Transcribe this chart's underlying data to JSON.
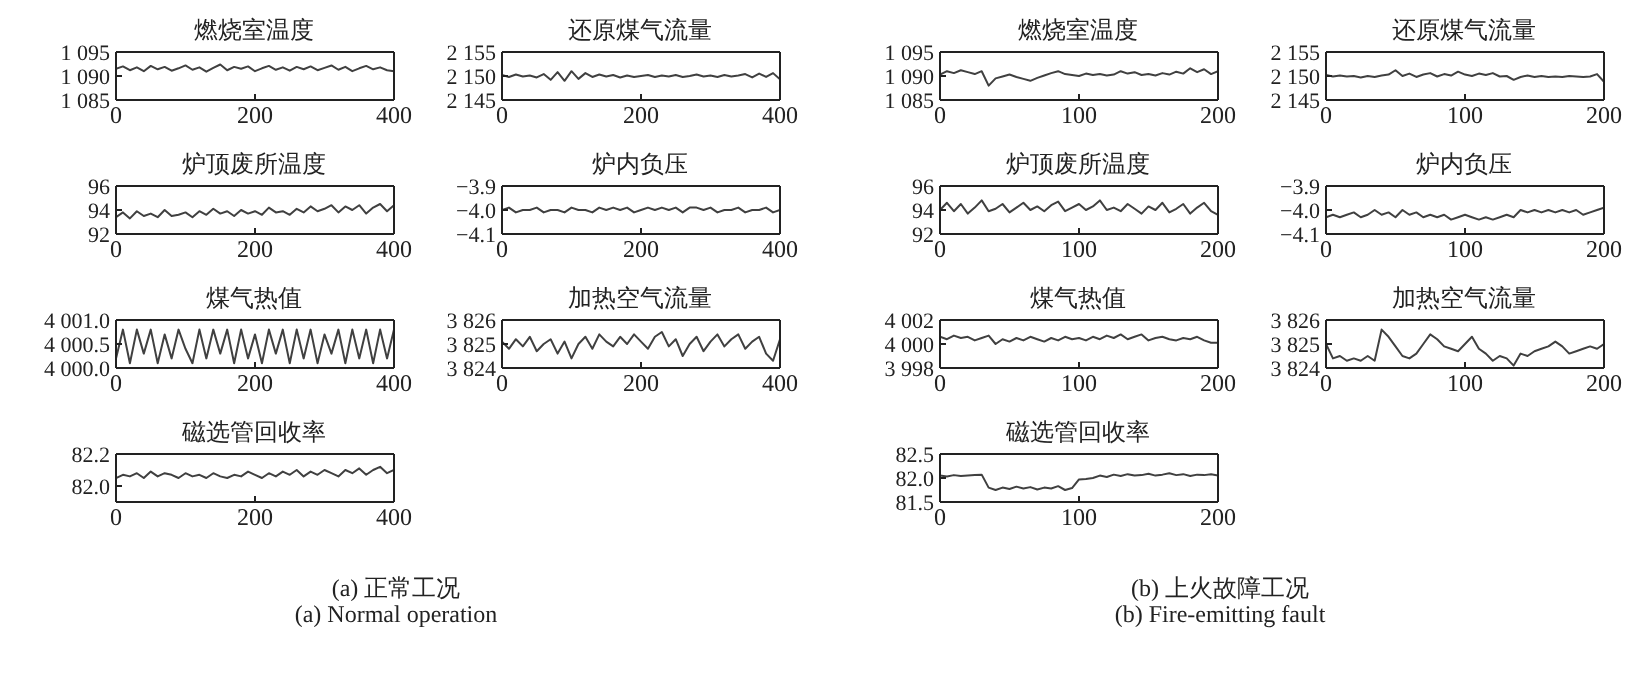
{
  "chart_data": [
    {
      "type": "line",
      "title": "燃烧室温度",
      "color": "#404040",
      "x": [
        0,
        10,
        20,
        30,
        40,
        50,
        60,
        70,
        80,
        90,
        100,
        110,
        120,
        130,
        140,
        150,
        160,
        170,
        180,
        190,
        200,
        210,
        220,
        230,
        240,
        250,
        260,
        270,
        280,
        290,
        300,
        310,
        320,
        330,
        340,
        350,
        360,
        370,
        380,
        390,
        400
      ],
      "values": [
        1091.5,
        1092.0,
        1091.2,
        1091.8,
        1091.0,
        1092.1,
        1091.4,
        1091.9,
        1091.1,
        1091.6,
        1092.2,
        1091.3,
        1091.8,
        1090.9,
        1091.7,
        1092.4,
        1091.2,
        1091.9,
        1091.5,
        1092.0,
        1091.0,
        1091.6,
        1092.1,
        1091.3,
        1091.8,
        1091.1,
        1091.9,
        1091.4,
        1092.0,
        1091.2,
        1091.7,
        1092.2,
        1091.3,
        1091.9,
        1091.0,
        1091.6,
        1092.1,
        1091.4,
        1091.8,
        1091.2,
        1091.0
      ],
      "xlim": [
        0,
        400
      ],
      "xticks": [
        0,
        200,
        400
      ],
      "ylim": [
        1085,
        1095
      ],
      "yticks": [
        {
          "value": 1085,
          "label": "1 085"
        },
        {
          "value": 1090,
          "label": "1 090"
        },
        {
          "value": 1095,
          "label": "1 095"
        }
      ]
    },
    {
      "type": "line",
      "title": "还原煤气流量",
      "color": "#404040",
      "x": [
        0,
        10,
        20,
        30,
        40,
        50,
        60,
        70,
        80,
        90,
        100,
        110,
        120,
        130,
        140,
        150,
        160,
        170,
        180,
        190,
        200,
        210,
        220,
        230,
        240,
        250,
        260,
        270,
        280,
        290,
        300,
        310,
        320,
        330,
        340,
        350,
        360,
        370,
        380,
        390,
        400
      ],
      "values": [
        2150.2,
        2149.8,
        2150.3,
        2149.9,
        2150.1,
        2149.7,
        2150.4,
        2149.2,
        2150.8,
        2149.0,
        2151.0,
        2149.4,
        2150.6,
        2149.8,
        2150.3,
        2149.9,
        2150.2,
        2149.7,
        2150.1,
        2149.8,
        2150.0,
        2150.2,
        2149.8,
        2150.1,
        2149.9,
        2150.2,
        2149.8,
        2150.0,
        2150.3,
        2149.9,
        2150.1,
        2149.8,
        2150.2,
        2149.9,
        2150.1,
        2150.4,
        2149.7,
        2150.5,
        2149.8,
        2150.6,
        2149.3
      ],
      "xlim": [
        0,
        400
      ],
      "xticks": [
        0,
        200,
        400
      ],
      "ylim": [
        2145,
        2155
      ],
      "yticks": [
        {
          "value": 2145,
          "label": "2 145"
        },
        {
          "value": 2150,
          "label": "2 150"
        },
        {
          "value": 2155,
          "label": "2 155"
        }
      ]
    },
    {
      "type": "line",
      "title": "炉顶废所温度",
      "color": "#404040",
      "x": [
        0,
        10,
        20,
        30,
        40,
        50,
        60,
        70,
        80,
        90,
        100,
        110,
        120,
        130,
        140,
        150,
        160,
        170,
        180,
        190,
        200,
        210,
        220,
        230,
        240,
        250,
        260,
        270,
        280,
        290,
        300,
        310,
        320,
        330,
        340,
        350,
        360,
        370,
        380,
        390,
        400
      ],
      "values": [
        93.4,
        93.8,
        93.3,
        93.9,
        93.5,
        93.7,
        93.4,
        94.0,
        93.5,
        93.6,
        93.8,
        93.4,
        93.9,
        93.6,
        94.1,
        93.7,
        93.9,
        93.5,
        94.0,
        93.7,
        93.9,
        93.6,
        94.2,
        93.8,
        93.9,
        93.6,
        94.1,
        93.8,
        94.3,
        93.9,
        94.1,
        94.4,
        93.8,
        94.3,
        94.0,
        94.4,
        93.7,
        94.2,
        94.5,
        93.9,
        94.4
      ],
      "xlim": [
        0,
        400
      ],
      "xticks": [
        0,
        200,
        400
      ],
      "ylim": [
        92,
        96
      ],
      "yticks": [
        92,
        94,
        96
      ]
    },
    {
      "type": "line",
      "title": "炉内负压",
      "color": "#404040",
      "x": [
        0,
        10,
        20,
        30,
        40,
        50,
        60,
        70,
        80,
        90,
        100,
        110,
        120,
        130,
        140,
        150,
        160,
        170,
        180,
        190,
        200,
        210,
        220,
        230,
        240,
        250,
        260,
        270,
        280,
        290,
        300,
        310,
        320,
        330,
        340,
        350,
        360,
        370,
        380,
        390,
        400
      ],
      "values": [
        -4.0,
        -3.99,
        -4.01,
        -4.0,
        -4.0,
        -3.99,
        -4.01,
        -4.0,
        -4.0,
        -4.01,
        -3.99,
        -4.0,
        -4.0,
        -4.01,
        -3.99,
        -4.0,
        -3.99,
        -4.0,
        -3.99,
        -4.01,
        -4.0,
        -3.99,
        -4.0,
        -3.99,
        -4.0,
        -3.99,
        -4.01,
        -3.99,
        -3.99,
        -4.0,
        -3.99,
        -4.01,
        -4.0,
        -4.0,
        -3.99,
        -4.01,
        -4.0,
        -4.0,
        -3.99,
        -4.01,
        -4.0
      ],
      "xlim": [
        0,
        400
      ],
      "xticks": [
        0,
        200,
        400
      ],
      "ylim": [
        -4.1,
        -3.9
      ],
      "yticks": [
        {
          "value": -4.1,
          "label": "−4.1"
        },
        {
          "value": -4.0,
          "label": "−4.0"
        },
        {
          "value": -3.9,
          "label": "−3.9"
        }
      ]
    },
    {
      "type": "line",
      "title": "煤气热值",
      "color": "#404040",
      "x": [
        0,
        10,
        20,
        30,
        40,
        50,
        60,
        70,
        80,
        90,
        100,
        110,
        120,
        130,
        140,
        150,
        160,
        170,
        180,
        190,
        200,
        210,
        220,
        230,
        240,
        250,
        260,
        270,
        280,
        290,
        300,
        310,
        320,
        330,
        340,
        350,
        360,
        370,
        380,
        390,
        400
      ],
      "values": [
        4000.2,
        4000.8,
        4000.1,
        4000.8,
        4000.3,
        4000.8,
        4000.1,
        4000.7,
        4000.2,
        4000.8,
        4000.4,
        4000.1,
        4000.8,
        4000.2,
        4000.8,
        4000.3,
        4000.8,
        4000.1,
        4000.8,
        4000.2,
        4000.7,
        4000.1,
        4000.8,
        4000.3,
        4000.8,
        4000.1,
        4000.8,
        4000.2,
        4000.8,
        4000.1,
        4000.7,
        4000.3,
        4000.8,
        4000.1,
        4000.8,
        4000.2,
        4000.8,
        4000.1,
        4000.8,
        4000.2,
        4000.8
      ],
      "xlim": [
        0,
        400
      ],
      "xticks": [
        0,
        200,
        400
      ],
      "ylim": [
        4000,
        4001
      ],
      "yticks": [
        {
          "value": 4000,
          "label": "4 000.0"
        },
        {
          "value": 4000.5,
          "label": "4 000.5"
        },
        {
          "value": 4001,
          "label": "4 001.0"
        }
      ]
    },
    {
      "type": "line",
      "title": "加热空气流量",
      "color": "#404040",
      "x": [
        0,
        10,
        20,
        30,
        40,
        50,
        60,
        70,
        80,
        90,
        100,
        110,
        120,
        130,
        140,
        150,
        160,
        170,
        180,
        190,
        200,
        210,
        220,
        230,
        240,
        250,
        260,
        270,
        280,
        290,
        300,
        310,
        320,
        330,
        340,
        350,
        360,
        370,
        380,
        390,
        400
      ],
      "values": [
        3825.1,
        3824.8,
        3825.2,
        3824.9,
        3825.3,
        3824.7,
        3825.0,
        3825.2,
        3824.6,
        3825.1,
        3824.4,
        3825.0,
        3825.3,
        3824.8,
        3825.4,
        3825.1,
        3824.9,
        3825.3,
        3825.0,
        3825.4,
        3825.1,
        3824.8,
        3825.3,
        3825.5,
        3824.9,
        3825.2,
        3824.5,
        3825.0,
        3825.3,
        3824.7,
        3825.1,
        3825.4,
        3824.9,
        3825.2,
        3825.4,
        3824.8,
        3825.1,
        3825.3,
        3824.6,
        3824.3,
        3825.2
      ],
      "xlim": [
        0,
        400
      ],
      "xticks": [
        0,
        200,
        400
      ],
      "ylim": [
        3824,
        3826
      ],
      "yticks": [
        {
          "value": 3824,
          "label": "3 824"
        },
        {
          "value": 3825,
          "label": "3 825"
        },
        {
          "value": 3826,
          "label": "3 826"
        }
      ]
    },
    {
      "type": "line",
      "title": "磁选管回收率",
      "color": "#404040",
      "x": [
        0,
        10,
        20,
        30,
        40,
        50,
        60,
        70,
        80,
        90,
        100,
        110,
        120,
        130,
        140,
        150,
        160,
        170,
        180,
        190,
        200,
        210,
        220,
        230,
        240,
        250,
        260,
        270,
        280,
        290,
        300,
        310,
        320,
        330,
        340,
        350,
        360,
        370,
        380,
        390,
        400
      ],
      "values": [
        82.05,
        82.07,
        82.06,
        82.08,
        82.05,
        82.09,
        82.06,
        82.08,
        82.07,
        82.05,
        82.08,
        82.06,
        82.07,
        82.05,
        82.08,
        82.06,
        82.05,
        82.07,
        82.06,
        82.09,
        82.07,
        82.05,
        82.08,
        82.06,
        82.09,
        82.07,
        82.1,
        82.06,
        82.09,
        82.07,
        82.1,
        82.08,
        82.06,
        82.1,
        82.08,
        82.11,
        82.07,
        82.1,
        82.12,
        82.08,
        82.1
      ],
      "xlim": [
        0,
        400
      ],
      "xticks": [
        0,
        200,
        400
      ],
      "ylim": [
        81.9,
        82.2
      ],
      "yticks": [
        {
          "value": 82.0,
          "label": "82.0"
        },
        {
          "value": 82.2,
          "label": "82.2"
        }
      ],
      "annotations": [
        "(a) 正常工况",
        "(a) Normal operation"
      ]
    },
    {
      "type": "line",
      "title": "燃烧室温度",
      "color": "#404040",
      "x": [
        0,
        5,
        10,
        15,
        20,
        25,
        30,
        35,
        40,
        45,
        50,
        55,
        60,
        65,
        70,
        75,
        80,
        85,
        90,
        95,
        100,
        105,
        110,
        115,
        120,
        125,
        130,
        135,
        140,
        145,
        150,
        155,
        160,
        165,
        170,
        175,
        180,
        185,
        190,
        195,
        200
      ],
      "values": [
        1090.3,
        1091.0,
        1090.6,
        1091.2,
        1090.8,
        1090.4,
        1091.0,
        1088.0,
        1089.5,
        1089.9,
        1090.3,
        1089.8,
        1089.4,
        1089.0,
        1089.6,
        1090.1,
        1090.6,
        1091.0,
        1090.4,
        1090.2,
        1090.0,
        1090.5,
        1090.2,
        1090.4,
        1090.1,
        1090.3,
        1091.0,
        1090.5,
        1090.8,
        1090.2,
        1090.4,
        1090.1,
        1090.6,
        1090.3,
        1090.9,
        1090.5,
        1091.6,
        1090.8,
        1091.4,
        1090.4,
        1091.0
      ],
      "xlim": [
        0,
        200
      ],
      "xticks": [
        0,
        100,
        200
      ],
      "ylim": [
        1085,
        1095
      ],
      "yticks": [
        {
          "value": 1085,
          "label": "1 085"
        },
        {
          "value": 1090,
          "label": "1 090"
        },
        {
          "value": 1095,
          "label": "1 095"
        }
      ]
    },
    {
      "type": "line",
      "title": "还原煤气流量",
      "color": "#404040",
      "x": [
        0,
        5,
        10,
        15,
        20,
        25,
        30,
        35,
        40,
        45,
        50,
        55,
        60,
        65,
        70,
        75,
        80,
        85,
        90,
        95,
        100,
        105,
        110,
        115,
        120,
        125,
        130,
        135,
        140,
        145,
        150,
        155,
        160,
        165,
        170,
        175,
        180,
        185,
        190,
        195,
        200
      ],
      "values": [
        2150.2,
        2149.9,
        2150.1,
        2149.9,
        2150.0,
        2149.7,
        2150.0,
        2149.8,
        2150.1,
        2150.3,
        2151.2,
        2150.0,
        2150.5,
        2149.8,
        2150.3,
        2150.6,
        2149.9,
        2150.4,
        2150.1,
        2150.9,
        2150.3,
        2150.0,
        2150.5,
        2150.2,
        2150.6,
        2149.9,
        2150.0,
        2149.2,
        2149.8,
        2150.1,
        2149.8,
        2150.0,
        2149.8,
        2149.9,
        2149.8,
        2150.0,
        2149.9,
        2149.8,
        2149.9,
        2150.4,
        2148.8
      ],
      "xlim": [
        0,
        200
      ],
      "xticks": [
        0,
        100,
        200
      ],
      "ylim": [
        2145,
        2155
      ],
      "yticks": [
        {
          "value": 2145,
          "label": "2 145"
        },
        {
          "value": 2150,
          "label": "2 150"
        },
        {
          "value": 2155,
          "label": "2 155"
        }
      ]
    },
    {
      "type": "line",
      "title": "炉顶废所温度",
      "color": "#404040",
      "x": [
        0,
        5,
        10,
        15,
        20,
        25,
        30,
        35,
        40,
        45,
        50,
        55,
        60,
        65,
        70,
        75,
        80,
        85,
        90,
        95,
        100,
        105,
        110,
        115,
        120,
        125,
        130,
        135,
        140,
        145,
        150,
        155,
        160,
        165,
        170,
        175,
        180,
        185,
        190,
        195,
        200
      ],
      "values": [
        94.0,
        94.6,
        93.9,
        94.5,
        93.7,
        94.2,
        94.8,
        93.9,
        94.1,
        94.5,
        93.8,
        94.2,
        94.6,
        94.0,
        94.3,
        93.9,
        94.4,
        94.7,
        93.9,
        94.2,
        94.5,
        94.0,
        94.3,
        94.8,
        94.0,
        94.2,
        93.9,
        94.5,
        94.1,
        93.7,
        94.3,
        94.0,
        94.6,
        93.8,
        94.1,
        94.5,
        93.7,
        94.2,
        94.6,
        93.9,
        93.6
      ],
      "xlim": [
        0,
        200
      ],
      "xticks": [
        0,
        100,
        200
      ],
      "ylim": [
        92,
        96
      ],
      "yticks": [
        92,
        94,
        96
      ]
    },
    {
      "type": "line",
      "title": "炉内负压",
      "color": "#404040",
      "x": [
        0,
        5,
        10,
        15,
        20,
        25,
        30,
        35,
        40,
        45,
        50,
        55,
        60,
        65,
        70,
        75,
        80,
        85,
        90,
        95,
        100,
        105,
        110,
        115,
        120,
        125,
        130,
        135,
        140,
        145,
        150,
        155,
        160,
        165,
        170,
        175,
        180,
        185,
        190,
        195,
        200
      ],
      "values": [
        -4.03,
        -4.02,
        -4.03,
        -4.02,
        -4.01,
        -4.03,
        -4.02,
        -4.0,
        -4.02,
        -4.01,
        -4.03,
        -4.0,
        -4.02,
        -4.01,
        -4.03,
        -4.02,
        -4.03,
        -4.02,
        -4.04,
        -4.03,
        -4.02,
        -4.03,
        -4.04,
        -4.03,
        -4.04,
        -4.03,
        -4.02,
        -4.03,
        -4.0,
        -4.01,
        -4.0,
        -4.01,
        -4.0,
        -4.01,
        -4.0,
        -4.01,
        -4.0,
        -4.02,
        -4.01,
        -4.0,
        -3.99
      ],
      "xlim": [
        0,
        200
      ],
      "xticks": [
        0,
        100,
        200
      ],
      "ylim": [
        -4.1,
        -3.9
      ],
      "yticks": [
        {
          "value": -4.1,
          "label": "−4.1"
        },
        {
          "value": -4.0,
          "label": "−4.0"
        },
        {
          "value": -3.9,
          "label": "−3.9"
        }
      ]
    },
    {
      "type": "line",
      "title": "煤气热值",
      "color": "#404040",
      "x": [
        0,
        5,
        10,
        15,
        20,
        25,
        30,
        35,
        40,
        45,
        50,
        55,
        60,
        65,
        70,
        75,
        80,
        85,
        90,
        95,
        100,
        105,
        110,
        115,
        120,
        125,
        130,
        135,
        140,
        145,
        150,
        155,
        160,
        165,
        170,
        175,
        180,
        185,
        190,
        195,
        200
      ],
      "values": [
        4000.6,
        4000.4,
        4000.7,
        4000.5,
        4000.6,
        4000.3,
        4000.5,
        4000.7,
        4000.0,
        4000.4,
        4000.2,
        4000.5,
        4000.3,
        4000.6,
        4000.4,
        4000.2,
        4000.5,
        4000.3,
        4000.6,
        4000.4,
        4000.5,
        4000.3,
        4000.6,
        4000.4,
        4000.7,
        4000.5,
        4000.8,
        4000.4,
        4000.6,
        4000.8,
        4000.3,
        4000.5,
        4000.6,
        4000.4,
        4000.3,
        4000.5,
        4000.4,
        4000.6,
        4000.3,
        4000.1,
        4000.1
      ],
      "xlim": [
        0,
        200
      ],
      "xticks": [
        0,
        100,
        200
      ],
      "ylim": [
        3998,
        4002
      ],
      "yticks": [
        {
          "value": 3998,
          "label": "3 998"
        },
        {
          "value": 4000,
          "label": "4 000"
        },
        {
          "value": 4002,
          "label": "4 002"
        }
      ]
    },
    {
      "type": "line",
      "title": "加热空气流量",
      "color": "#404040",
      "x": [
        0,
        5,
        10,
        15,
        20,
        25,
        30,
        35,
        40,
        45,
        50,
        55,
        60,
        65,
        70,
        75,
        80,
        85,
        90,
        95,
        100,
        105,
        110,
        115,
        120,
        125,
        130,
        135,
        140,
        145,
        150,
        155,
        160,
        165,
        170,
        175,
        180,
        185,
        190,
        195,
        200
      ],
      "values": [
        3825.0,
        3824.4,
        3824.5,
        3824.3,
        3824.4,
        3824.3,
        3824.5,
        3824.3,
        3825.6,
        3825.3,
        3824.9,
        3824.5,
        3824.4,
        3824.6,
        3825.0,
        3825.4,
        3825.2,
        3824.9,
        3824.8,
        3824.7,
        3825.0,
        3825.3,
        3824.8,
        3824.6,
        3824.3,
        3824.5,
        3824.4,
        3824.1,
        3824.6,
        3824.5,
        3824.7,
        3824.8,
        3824.9,
        3825.1,
        3824.9,
        3824.6,
        3824.7,
        3824.8,
        3824.9,
        3824.8,
        3825.0
      ],
      "xlim": [
        0,
        200
      ],
      "xticks": [
        0,
        100,
        200
      ],
      "ylim": [
        3824,
        3826
      ],
      "yticks": [
        {
          "value": 3824,
          "label": "3 824"
        },
        {
          "value": 3825,
          "label": "3 825"
        },
        {
          "value": 3826,
          "label": "3 826"
        }
      ]
    },
    {
      "type": "line",
      "title": "磁选管回收率",
      "color": "#404040",
      "x": [
        0,
        5,
        10,
        15,
        20,
        25,
        30,
        35,
        40,
        45,
        50,
        55,
        60,
        65,
        70,
        75,
        80,
        85,
        90,
        95,
        100,
        105,
        110,
        115,
        120,
        125,
        130,
        135,
        140,
        145,
        150,
        155,
        160,
        165,
        170,
        175,
        180,
        185,
        190,
        195,
        200
      ],
      "values": [
        82.05,
        82.03,
        82.06,
        82.04,
        82.05,
        82.06,
        82.07,
        81.8,
        81.75,
        81.8,
        81.77,
        81.82,
        81.78,
        81.81,
        81.76,
        81.8,
        81.78,
        81.83,
        81.75,
        81.79,
        81.97,
        81.98,
        82.0,
        82.05,
        82.02,
        82.07,
        82.04,
        82.08,
        82.05,
        82.06,
        82.09,
        82.05,
        82.07,
        82.1,
        82.06,
        82.08,
        82.04,
        82.07,
        82.06,
        82.08,
        82.05
      ],
      "xlim": [
        0,
        200
      ],
      "xticks": [
        0,
        100,
        200
      ],
      "ylim": [
        81.5,
        82.5
      ],
      "yticks": [
        {
          "value": 81.5,
          "label": "81.5"
        },
        {
          "value": 82.0,
          "label": "82.0"
        },
        {
          "value": 82.5,
          "label": "82.5"
        }
      ],
      "annotations": [
        "(b) 上火故障工况",
        "(b) Fire-emitting fault"
      ]
    }
  ]
}
